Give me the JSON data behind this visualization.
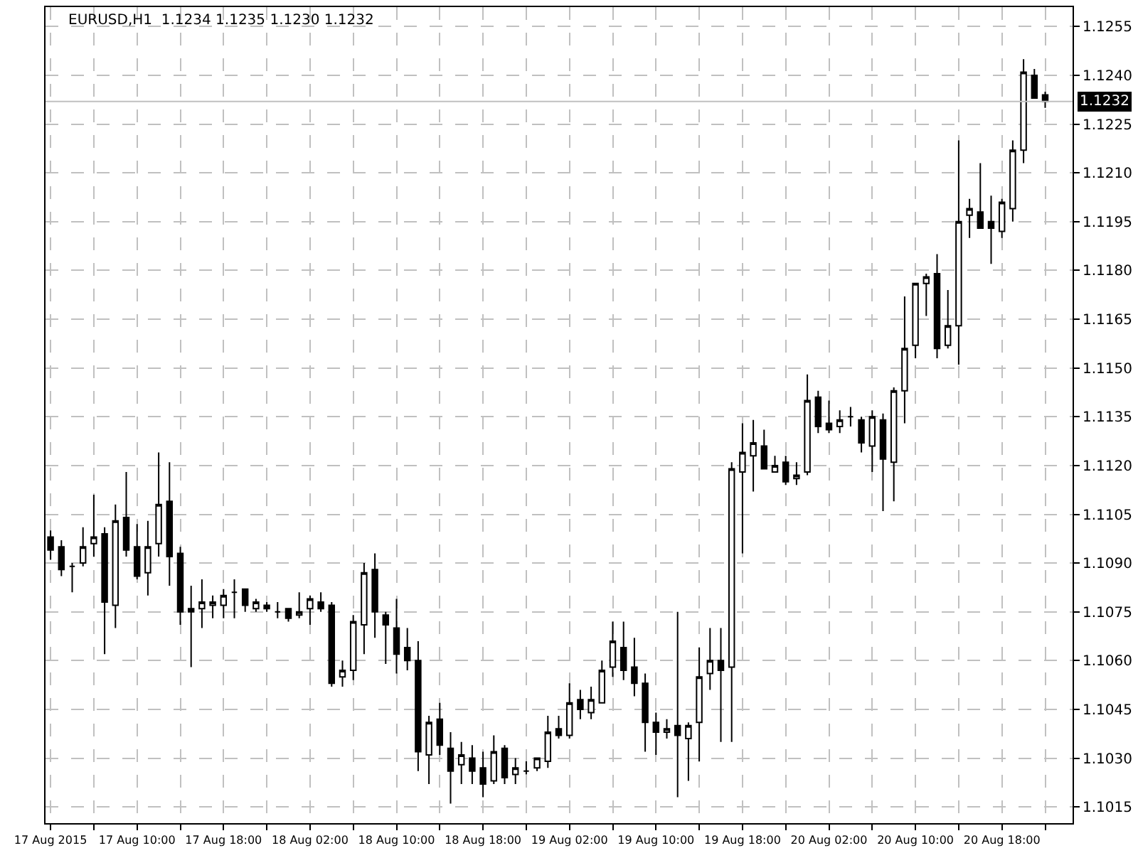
{
  "chart_data": {
    "type": "candlestick",
    "title": "EURUSD,H1  1.1234 1.1235 1.1230 1.1232",
    "color": "#000000",
    "x": [
      "2015-08-17T02:00",
      "2015-08-17T03:00",
      "2015-08-17T04:00",
      "2015-08-17T05:00",
      "2015-08-17T06:00",
      "2015-08-17T07:00",
      "2015-08-17T08:00",
      "2015-08-17T09:00",
      "2015-08-17T10:00",
      "2015-08-17T11:00",
      "2015-08-17T12:00",
      "2015-08-17T13:00",
      "2015-08-17T14:00",
      "2015-08-17T15:00",
      "2015-08-17T16:00",
      "2015-08-17T17:00",
      "2015-08-17T18:00",
      "2015-08-17T19:00",
      "2015-08-17T20:00",
      "2015-08-17T21:00",
      "2015-08-17T22:00",
      "2015-08-17T23:00",
      "2015-08-18T00:00",
      "2015-08-18T01:00",
      "2015-08-18T02:00",
      "2015-08-18T03:00",
      "2015-08-18T04:00",
      "2015-08-18T05:00",
      "2015-08-18T06:00",
      "2015-08-18T07:00",
      "2015-08-18T08:00",
      "2015-08-18T09:00",
      "2015-08-18T10:00",
      "2015-08-18T11:00",
      "2015-08-18T12:00",
      "2015-08-18T13:00",
      "2015-08-18T14:00",
      "2015-08-18T15:00",
      "2015-08-18T16:00",
      "2015-08-18T17:00",
      "2015-08-18T18:00",
      "2015-08-18T19:00",
      "2015-08-18T20:00",
      "2015-08-18T21:00",
      "2015-08-18T22:00",
      "2015-08-18T23:00",
      "2015-08-19T00:00",
      "2015-08-19T01:00",
      "2015-08-19T02:00",
      "2015-08-19T03:00",
      "2015-08-19T04:00",
      "2015-08-19T05:00",
      "2015-08-19T06:00",
      "2015-08-19T07:00",
      "2015-08-19T08:00",
      "2015-08-19T09:00",
      "2015-08-19T10:00",
      "2015-08-19T11:00",
      "2015-08-19T12:00",
      "2015-08-19T13:00",
      "2015-08-19T14:00",
      "2015-08-19T15:00",
      "2015-08-19T16:00",
      "2015-08-19T17:00",
      "2015-08-19T18:00",
      "2015-08-19T19:00",
      "2015-08-19T20:00",
      "2015-08-19T21:00",
      "2015-08-19T22:00",
      "2015-08-19T23:00",
      "2015-08-20T00:00",
      "2015-08-20T01:00",
      "2015-08-20T02:00",
      "2015-08-20T03:00",
      "2015-08-20T04:00",
      "2015-08-20T05:00",
      "2015-08-20T06:00",
      "2015-08-20T07:00",
      "2015-08-20T08:00",
      "2015-08-20T09:00",
      "2015-08-20T10:00",
      "2015-08-20T11:00",
      "2015-08-20T12:00",
      "2015-08-20T13:00",
      "2015-08-20T14:00",
      "2015-08-20T15:00",
      "2015-08-20T16:00",
      "2015-08-20T17:00",
      "2015-08-20T18:00",
      "2015-08-20T19:00",
      "2015-08-20T20:00",
      "2015-08-20T21:00",
      "2015-08-20T22:00"
    ],
    "ohlc": [
      [
        1.1098,
        1.11,
        1.1091,
        1.1094
      ],
      [
        1.1095,
        1.1097,
        1.1086,
        1.1088
      ],
      [
        1.1089,
        1.109,
        1.1081,
        1.1089
      ],
      [
        1.109,
        1.1101,
        1.1089,
        1.1095
      ],
      [
        1.1096,
        1.1111,
        1.1092,
        1.1098
      ],
      [
        1.1099,
        1.1101,
        1.1062,
        1.1078
      ],
      [
        1.1077,
        1.1108,
        1.107,
        1.1103
      ],
      [
        1.1104,
        1.1118,
        1.1092,
        1.1094
      ],
      [
        1.1095,
        1.1102,
        1.1085,
        1.1086
      ],
      [
        1.1087,
        1.1103,
        1.108,
        1.1095
      ],
      [
        1.1096,
        1.1124,
        1.1092,
        1.1108
      ],
      [
        1.1109,
        1.1121,
        1.1083,
        1.1092
      ],
      [
        1.1093,
        1.1095,
        1.1071,
        1.1075
      ],
      [
        1.1076,
        1.1083,
        1.1058,
        1.1075
      ],
      [
        1.1076,
        1.1085,
        1.107,
        1.1078
      ],
      [
        1.1077,
        1.108,
        1.1073,
        1.1078
      ],
      [
        1.1077,
        1.1082,
        1.1073,
        1.108
      ],
      [
        1.1081,
        1.1085,
        1.1073,
        1.1081
      ],
      [
        1.1082,
        1.1082,
        1.1075,
        1.1077
      ],
      [
        1.1076,
        1.1079,
        1.1075,
        1.1078
      ],
      [
        1.1077,
        1.1078,
        1.1075,
        1.1076
      ],
      [
        1.1075,
        1.1078,
        1.1073,
        1.1075
      ],
      [
        1.1076,
        1.1076,
        1.1072,
        1.1073
      ],
      [
        1.1074,
        1.1081,
        1.1073,
        1.1075
      ],
      [
        1.1076,
        1.108,
        1.1071,
        1.1079
      ],
      [
        1.1078,
        1.1081,
        1.1075,
        1.1076
      ],
      [
        1.1077,
        1.1078,
        1.1052,
        1.1053
      ],
      [
        1.1055,
        1.106,
        1.1052,
        1.1057
      ],
      [
        1.1057,
        1.1074,
        1.1054,
        1.1072
      ],
      [
        1.1071,
        1.109,
        1.1062,
        1.1087
      ],
      [
        1.1088,
        1.1093,
        1.1067,
        1.1075
      ],
      [
        1.1074,
        1.1075,
        1.1059,
        1.1071
      ],
      [
        1.107,
        1.1079,
        1.1056,
        1.1062
      ],
      [
        1.1064,
        1.107,
        1.1057,
        1.106
      ],
      [
        1.106,
        1.1066,
        1.1026,
        1.1032
      ],
      [
        1.1031,
        1.1043,
        1.1022,
        1.1041
      ],
      [
        1.1042,
        1.1047,
        1.1031,
        1.1034
      ],
      [
        1.1033,
        1.1038,
        1.1016,
        1.1026
      ],
      [
        1.1028,
        1.1035,
        1.1022,
        1.1031
      ],
      [
        1.103,
        1.1034,
        1.1022,
        1.1026
      ],
      [
        1.1027,
        1.1032,
        1.1018,
        1.1022
      ],
      [
        1.1023,
        1.1037,
        1.1022,
        1.1032
      ],
      [
        1.1033,
        1.1034,
        1.1022,
        1.1024
      ],
      [
        1.1025,
        1.103,
        1.1022,
        1.1027
      ],
      [
        1.1026,
        1.1029,
        1.1025,
        1.1026
      ],
      [
        1.1027,
        1.103,
        1.1026,
        1.103
      ],
      [
        1.1029,
        1.1043,
        1.1027,
        1.1038
      ],
      [
        1.1039,
        1.1043,
        1.1036,
        1.1037
      ],
      [
        1.1037,
        1.1053,
        1.1036,
        1.1047
      ],
      [
        1.1048,
        1.1051,
        1.1042,
        1.1045
      ],
      [
        1.1044,
        1.1052,
        1.1042,
        1.1048
      ],
      [
        1.1047,
        1.106,
        1.1047,
        1.1057
      ],
      [
        1.1058,
        1.1072,
        1.1055,
        1.1066
      ],
      [
        1.1064,
        1.1072,
        1.1054,
        1.1057
      ],
      [
        1.1058,
        1.1067,
        1.1049,
        1.1053
      ],
      [
        1.1053,
        1.1056,
        1.1032,
        1.1041
      ],
      [
        1.1041,
        1.1044,
        1.1031,
        1.1038
      ],
      [
        1.1038,
        1.1042,
        1.1036,
        1.1039
      ],
      [
        1.104,
        1.1075,
        1.1018,
        1.1037
      ],
      [
        1.1036,
        1.1041,
        1.1023,
        1.104
      ],
      [
        1.1041,
        1.1064,
        1.1029,
        1.1055
      ],
      [
        1.1056,
        1.107,
        1.1051,
        1.106
      ],
      [
        1.106,
        1.107,
        1.1035,
        1.1057
      ],
      [
        1.1058,
        1.1121,
        1.1035,
        1.1119
      ],
      [
        1.1118,
        1.1133,
        1.1093,
        1.1124
      ],
      [
        1.1123,
        1.1134,
        1.1112,
        1.1127
      ],
      [
        1.1126,
        1.1131,
        1.1119,
        1.1119
      ],
      [
        1.1118,
        1.1123,
        1.1118,
        1.112
      ],
      [
        1.1121,
        1.1123,
        1.1114,
        1.1115
      ],
      [
        1.1116,
        1.1121,
        1.1114,
        1.1117
      ],
      [
        1.1118,
        1.1148,
        1.1117,
        1.114
      ],
      [
        1.1141,
        1.1143,
        1.113,
        1.1132
      ],
      [
        1.1133,
        1.114,
        1.113,
        1.1131
      ],
      [
        1.1132,
        1.1137,
        1.113,
        1.1134
      ],
      [
        1.1135,
        1.1138,
        1.1132,
        1.1135
      ],
      [
        1.1134,
        1.1135,
        1.1124,
        1.1127
      ],
      [
        1.1126,
        1.1137,
        1.1118,
        1.1135
      ],
      [
        1.1134,
        1.1136,
        1.1106,
        1.1122
      ],
      [
        1.1121,
        1.1144,
        1.1109,
        1.1143
      ],
      [
        1.1143,
        1.1172,
        1.1133,
        1.1156
      ],
      [
        1.1157,
        1.1176,
        1.1153,
        1.1176
      ],
      [
        1.1176,
        1.1179,
        1.1166,
        1.1178
      ],
      [
        1.1179,
        1.1185,
        1.1153,
        1.1156
      ],
      [
        1.1157,
        1.1174,
        1.1156,
        1.1163
      ],
      [
        1.1163,
        1.122,
        1.1151,
        1.1195
      ],
      [
        1.1197,
        1.1202,
        1.119,
        1.1199
      ],
      [
        1.1198,
        1.1213,
        1.1193,
        1.1193
      ],
      [
        1.1195,
        1.1203,
        1.1182,
        1.1193
      ],
      [
        1.1192,
        1.1202,
        1.119,
        1.1201
      ],
      [
        1.1199,
        1.122,
        1.1195,
        1.1217
      ],
      [
        1.1217,
        1.1245,
        1.1213,
        1.1241
      ],
      [
        1.124,
        1.1242,
        1.1233,
        1.1233
      ],
      [
        1.1234,
        1.1235,
        1.123,
        1.1232
      ]
    ],
    "xlim": [
      "2015-08-17T01:32",
      "2015-08-21T00:32"
    ],
    "xticks": [
      {
        "value": "2015-08-17T02:00",
        "label": "17 Aug 2015"
      },
      {
        "value": "2015-08-17T06:00",
        "label": null
      },
      {
        "value": "2015-08-17T10:00",
        "label": "17 Aug 10:00"
      },
      {
        "value": "2015-08-17T14:00",
        "label": null
      },
      {
        "value": "2015-08-17T18:00",
        "label": "17 Aug 18:00"
      },
      {
        "value": "2015-08-17T22:00",
        "label": null
      },
      {
        "value": "2015-08-18T02:00",
        "label": "18 Aug 02:00"
      },
      {
        "value": "2015-08-18T06:00",
        "label": null
      },
      {
        "value": "2015-08-18T10:00",
        "label": "18 Aug 10:00"
      },
      {
        "value": "2015-08-18T14:00",
        "label": null
      },
      {
        "value": "2015-08-18T18:00",
        "label": "18 Aug 18:00"
      },
      {
        "value": "2015-08-18T22:00",
        "label": null
      },
      {
        "value": "2015-08-19T02:00",
        "label": "19 Aug 02:00"
      },
      {
        "value": "2015-08-19T06:00",
        "label": null
      },
      {
        "value": "2015-08-19T10:00",
        "label": "19 Aug 10:00"
      },
      {
        "value": "2015-08-19T14:00",
        "label": null
      },
      {
        "value": "2015-08-19T18:00",
        "label": "19 Aug 18:00"
      },
      {
        "value": "2015-08-19T22:00",
        "label": null
      },
      {
        "value": "2015-08-20T02:00",
        "label": "20 Aug 02:00"
      },
      {
        "value": "2015-08-20T06:00",
        "label": null
      },
      {
        "value": "2015-08-20T10:00",
        "label": "20 Aug 10:00"
      },
      {
        "value": "2015-08-20T14:00",
        "label": null
      },
      {
        "value": "2015-08-20T18:00",
        "label": "20 Aug 18:00"
      },
      {
        "value": "2015-08-20T22:00",
        "label": null
      }
    ],
    "ylim": [
      1.101,
      1.1261
    ],
    "yticks": [
      1.1015,
      {
        "value": 1.103,
        "label": "1.1030"
      },
      1.1045,
      {
        "value": 1.106,
        "label": "1.1060"
      },
      1.1075,
      {
        "value": 1.109,
        "label": "1.1090"
      },
      1.1105,
      {
        "value": 1.112,
        "label": "1.1120"
      },
      1.1135,
      {
        "value": 1.115,
        "label": "1.1150"
      },
      1.1165,
      {
        "value": 1.118,
        "label": "1.1180"
      },
      1.1195,
      {
        "value": 1.121,
        "label": "1.1210"
      },
      1.1225,
      {
        "value": 1.124,
        "label": "1.1240"
      },
      1.1255
    ],
    "ref_lines": [
      {
        "axis": "y",
        "value": 1.1232,
        "label": "1.1232",
        "color": "#c0c0c0"
      }
    ],
    "grid": true
  }
}
